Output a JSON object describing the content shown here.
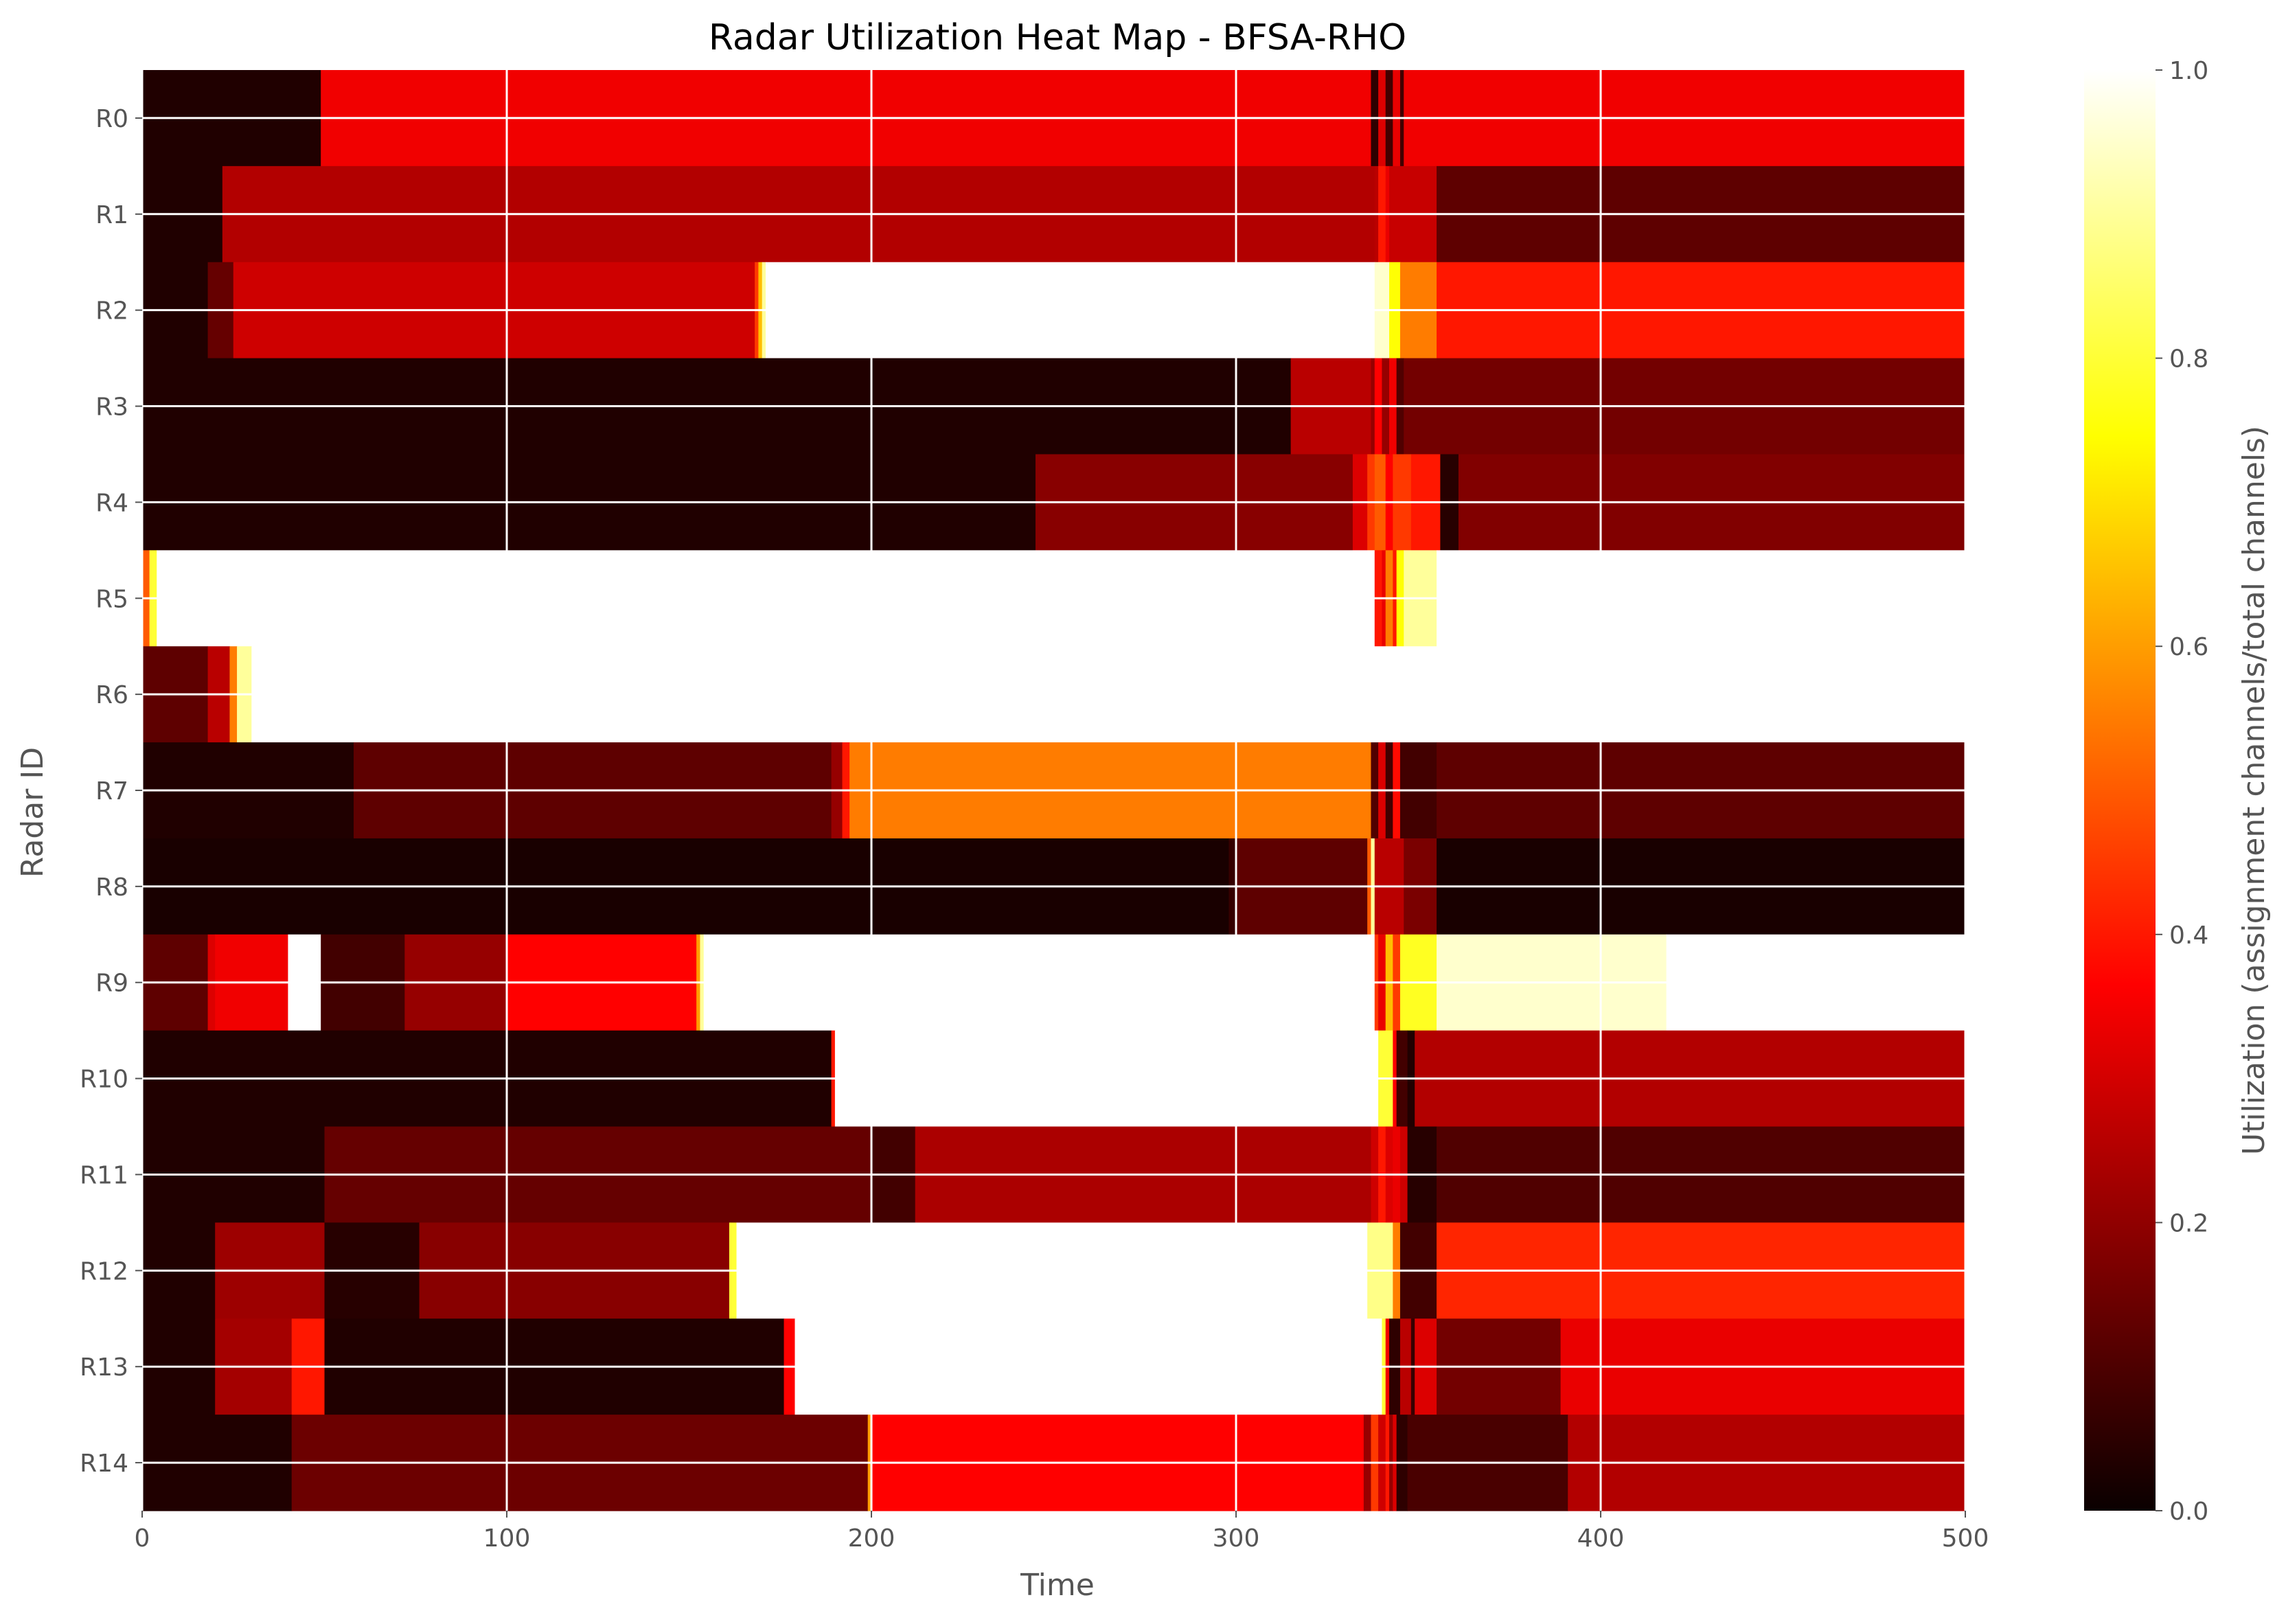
{
  "chart_data": {
    "type": "heatmap",
    "title": "Radar Utilization Heat Map - BFSA-RHO",
    "xlabel": "Time",
    "ylabel": "Radar ID",
    "xlim": [
      0,
      500
    ],
    "x_ticks": [
      "0",
      "100",
      "200",
      "300",
      "400",
      "500"
    ],
    "x_tick_values": [
      0,
      100,
      200,
      300,
      400,
      500
    ],
    "grid": true,
    "colormap": "hot",
    "colorbar": {
      "label": "Utilization (assignment channels/total channels)",
      "range": [
        0,
        1
      ],
      "ticks": [
        "0.0",
        "0.2",
        "0.4",
        "0.6",
        "0.8",
        "1.0"
      ],
      "tick_values": [
        0,
        0.2,
        0.4,
        0.6,
        0.8,
        1.0
      ]
    },
    "rows": [
      {
        "label": "R0",
        "segments": [
          [
            0,
            0.03
          ],
          [
            49,
            0.33
          ],
          [
            337,
            0.05
          ],
          [
            339,
            0.3
          ],
          [
            341,
            0.08
          ],
          [
            343,
            0.32
          ],
          [
            345,
            0.08
          ],
          [
            346,
            0.33
          ],
          [
            500,
            0.33
          ]
        ]
      },
      {
        "label": "R1",
        "segments": [
          [
            0,
            0.03
          ],
          [
            22,
            0.24
          ],
          [
            338,
            0.25
          ],
          [
            339,
            0.4
          ],
          [
            341,
            0.32
          ],
          [
            342,
            0.27
          ],
          [
            355,
            0.12
          ],
          [
            500,
            0.12
          ]
        ]
      },
      {
        "label": "R2",
        "segments": [
          [
            0,
            0.03
          ],
          [
            18,
            0.13
          ],
          [
            25,
            0.28
          ],
          [
            168,
            0.45
          ],
          [
            169,
            0.65
          ],
          [
            170,
            0.9
          ],
          [
            171,
            1.0
          ],
          [
            338,
            0.95
          ],
          [
            342,
            0.75
          ],
          [
            345,
            0.55
          ],
          [
            355,
            0.4
          ],
          [
            500,
            0.4
          ]
        ]
      },
      {
        "label": "R3",
        "segments": [
          [
            0,
            0.03
          ],
          [
            315,
            0.25
          ],
          [
            337,
            0.2
          ],
          [
            338,
            0.35
          ],
          [
            340,
            0.2
          ],
          [
            342,
            0.33
          ],
          [
            344,
            0.1
          ],
          [
            346,
            0.15
          ],
          [
            500,
            0.15
          ]
        ]
      },
      {
        "label": "R4",
        "segments": [
          [
            0,
            0.03
          ],
          [
            245,
            0.18
          ],
          [
            332,
            0.3
          ],
          [
            336,
            0.45
          ],
          [
            338,
            0.5
          ],
          [
            341,
            0.35
          ],
          [
            343,
            0.45
          ],
          [
            348,
            0.4
          ],
          [
            356,
            0.04
          ],
          [
            361,
            0.17
          ],
          [
            500,
            0.17
          ]
        ]
      },
      {
        "label": "R5",
        "segments": [
          [
            0,
            0.5
          ],
          [
            2,
            0.8
          ],
          [
            4,
            1.0
          ],
          [
            338,
            0.4
          ],
          [
            340,
            0.32
          ],
          [
            341,
            0.55
          ],
          [
            343,
            0.4
          ],
          [
            344,
            0.75
          ],
          [
            346,
            0.9
          ],
          [
            355,
            1.0
          ],
          [
            500,
            1.0
          ]
        ]
      },
      {
        "label": "R6",
        "segments": [
          [
            0,
            0.12
          ],
          [
            18,
            0.25
          ],
          [
            24,
            0.55
          ],
          [
            26,
            0.9
          ],
          [
            30,
            1.0
          ],
          [
            500,
            1.0
          ]
        ]
      },
      {
        "label": "R7",
        "segments": [
          [
            0,
            0.03
          ],
          [
            58,
            0.12
          ],
          [
            189,
            0.2
          ],
          [
            192,
            0.4
          ],
          [
            194,
            0.55
          ],
          [
            337,
            0.1
          ],
          [
            339,
            0.3
          ],
          [
            341,
            0.08
          ],
          [
            343,
            0.38
          ],
          [
            345,
            0.08
          ],
          [
            355,
            0.12
          ],
          [
            500,
            0.12
          ]
        ]
      },
      {
        "label": "R8",
        "segments": [
          [
            0,
            0.02
          ],
          [
            298,
            0.06
          ],
          [
            300,
            0.12
          ],
          [
            336,
            0.5
          ],
          [
            337,
            0.9
          ],
          [
            338,
            0.25
          ],
          [
            346,
            0.16
          ],
          [
            355,
            0.02
          ],
          [
            500,
            0.02
          ]
        ]
      },
      {
        "label": "R9",
        "segments": [
          [
            0,
            0.12
          ],
          [
            18,
            0.3
          ],
          [
            20,
            0.33
          ],
          [
            40,
            1.0
          ],
          [
            49,
            0.08
          ],
          [
            72,
            0.2
          ],
          [
            100,
            0.35
          ],
          [
            152,
            0.6
          ],
          [
            153,
            0.9
          ],
          [
            154,
            1.0
          ],
          [
            338,
            0.45
          ],
          [
            339,
            0.32
          ],
          [
            341,
            0.65
          ],
          [
            343,
            0.45
          ],
          [
            345,
            0.78
          ],
          [
            355,
            0.95
          ],
          [
            418,
            1.0
          ],
          [
            500,
            1.0
          ]
        ]
      },
      {
        "label": "R10",
        "segments": [
          [
            0,
            0.03
          ],
          [
            189,
            0.4
          ],
          [
            190,
            1.0
          ],
          [
            339,
            0.8
          ],
          [
            343,
            0.35
          ],
          [
            344,
            0.08
          ],
          [
            347,
            0.03
          ],
          [
            349,
            0.24
          ],
          [
            500,
            0.24
          ]
        ]
      },
      {
        "label": "R11",
        "segments": [
          [
            0,
            0.03
          ],
          [
            50,
            0.13
          ],
          [
            200,
            0.08
          ],
          [
            212,
            0.23
          ],
          [
            337,
            0.28
          ],
          [
            339,
            0.4
          ],
          [
            341,
            0.3
          ],
          [
            343,
            0.32
          ],
          [
            345,
            0.28
          ],
          [
            347,
            0.04
          ],
          [
            355,
            0.1
          ],
          [
            500,
            0.1
          ]
        ]
      },
      {
        "label": "R12",
        "segments": [
          [
            0,
            0.03
          ],
          [
            20,
            0.21
          ],
          [
            50,
            0.04
          ],
          [
            76,
            0.18
          ],
          [
            161,
            0.8
          ],
          [
            163,
            1.0
          ],
          [
            336,
            0.88
          ],
          [
            343,
            0.55
          ],
          [
            345,
            0.08
          ],
          [
            355,
            0.42
          ],
          [
            500,
            0.42
          ]
        ]
      },
      {
        "label": "R13",
        "segments": [
          [
            0,
            0.03
          ],
          [
            20,
            0.22
          ],
          [
            41,
            0.4
          ],
          [
            50,
            0.03
          ],
          [
            176,
            0.35
          ],
          [
            179,
            1.0
          ],
          [
            340,
            0.8
          ],
          [
            341,
            0.33
          ],
          [
            342,
            0.05
          ],
          [
            345,
            0.25
          ],
          [
            348,
            0.06
          ],
          [
            349,
            0.3
          ],
          [
            355,
            0.15
          ],
          [
            389,
            0.32
          ],
          [
            500,
            0.32
          ]
        ]
      },
      {
        "label": "R14",
        "segments": [
          [
            0,
            0.03
          ],
          [
            41,
            0.14
          ],
          [
            199,
            0.6
          ],
          [
            200,
            0.36
          ],
          [
            335,
            0.2
          ],
          [
            337,
            0.45
          ],
          [
            339,
            0.28
          ],
          [
            341,
            0.4
          ],
          [
            342,
            0.2
          ],
          [
            343,
            0.3
          ],
          [
            344,
            0.05
          ],
          [
            347,
            0.09
          ],
          [
            391,
            0.24
          ],
          [
            500,
            0.24
          ]
        ]
      }
    ]
  }
}
